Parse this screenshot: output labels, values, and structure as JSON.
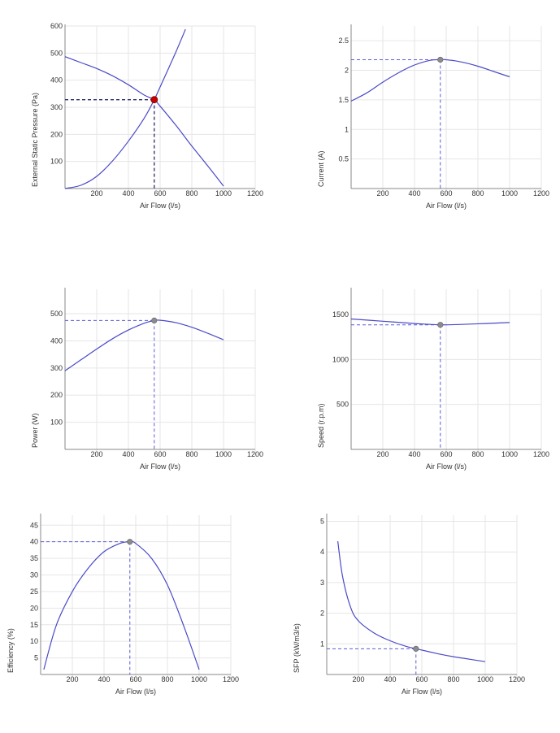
{
  "colors": {
    "curve": "#4a4ac8",
    "guide": "#5b5bd6",
    "guide_dark": "#2a2a6a",
    "grid": "#e6e6e6",
    "axis": "#888888",
    "point": "#8c8c8c",
    "duty_point": "#cc0000"
  },
  "chart_data": [
    {
      "id": "pressure",
      "type": "line",
      "xlabel": "Air Flow (l/s)",
      "ylabel": "External Static Pressure (Pa)",
      "xlim": [
        0,
        1200
      ],
      "ylim": [
        0,
        600
      ],
      "xticks": [
        200,
        400,
        600,
        800,
        1000,
        1200
      ],
      "yticks": [
        100,
        200,
        300,
        400,
        500,
        600
      ],
      "xtick_labels": [
        "200",
        "400",
        "600",
        "800",
        "1000",
        "1200"
      ],
      "ytick_labels": [
        "100",
        "200",
        "300",
        "400",
        "500",
        "600"
      ],
      "series": [
        {
          "x": [
            0,
            100,
            200,
            300,
            400,
            500,
            563,
            600,
            700,
            800,
            900,
            1000
          ],
          "y": [
            487,
            465,
            443,
            416,
            383,
            345,
            328,
            304,
            233,
            157,
            84,
            9
          ]
        },
        {
          "x": [
            0,
            100,
            200,
            300,
            400,
            500,
            563,
            600,
            700,
            760
          ],
          "y": [
            0,
            12,
            45,
            102,
            175,
            260,
            328,
            375,
            505,
            588
          ]
        }
      ],
      "point": {
        "x": 563,
        "y": 328
      },
      "point_style": "duty"
    },
    {
      "id": "current",
      "type": "line",
      "xlabel": "Air Flow (l/s)",
      "ylabel": "Current (A)",
      "xlim": [
        0,
        1200
      ],
      "ylim": [
        0,
        2.75
      ],
      "xticks": [
        200,
        400,
        600,
        800,
        1000,
        1200
      ],
      "yticks": [
        0.5,
        1,
        1.5,
        2,
        2.5
      ],
      "xtick_labels": [
        "200",
        "400",
        "600",
        "800",
        "1000",
        "1200"
      ],
      "ytick_labels": [
        "0.5",
        "1",
        "1.5",
        "2",
        "2.5"
      ],
      "series": [
        {
          "x": [
            0,
            100,
            200,
            300,
            400,
            500,
            563,
            600,
            700,
            800,
            900,
            1000
          ],
          "y": [
            1.48,
            1.62,
            1.8,
            1.96,
            2.09,
            2.17,
            2.18,
            2.18,
            2.14,
            2.07,
            1.98,
            1.89
          ]
        }
      ],
      "point": {
        "x": 563,
        "y": 2.18
      },
      "point_style": "gray"
    },
    {
      "id": "power",
      "type": "line",
      "xlabel": "Air Flow (l/s)",
      "ylabel": "Power (W)",
      "xlim": [
        0,
        1200
      ],
      "ylim": [
        0,
        590
      ],
      "xticks": [
        200,
        400,
        600,
        800,
        1000,
        1200
      ],
      "yticks": [
        100,
        200,
        300,
        400,
        500
      ],
      "xtick_labels": [
        "200",
        "400",
        "600",
        "800",
        "1000",
        "1200"
      ],
      "ytick_labels": [
        "100",
        "200",
        "300",
        "400",
        "500"
      ],
      "series": [
        {
          "x": [
            0,
            100,
            200,
            300,
            400,
            500,
            563,
            600,
            700,
            800,
            900,
            1000
          ],
          "y": [
            290,
            330,
            370,
            408,
            440,
            465,
            475,
            476,
            467,
            450,
            428,
            404
          ]
        }
      ],
      "point": {
        "x": 563,
        "y": 475
      },
      "point_style": "gray"
    },
    {
      "id": "speed",
      "type": "line",
      "xlabel": "Air Flow (l/s)",
      "ylabel": "Speed (r.p.m)",
      "xlim": [
        0,
        1200
      ],
      "ylim": [
        0,
        1780
      ],
      "xticks": [
        200,
        400,
        600,
        800,
        1000,
        1200
      ],
      "yticks": [
        500,
        1000,
        1500
      ],
      "xtick_labels": [
        "200",
        "400",
        "600",
        "800",
        "1000",
        "1200"
      ],
      "ytick_labels": [
        "500",
        "1000",
        "1500"
      ],
      "series": [
        {
          "x": [
            0,
            200,
            400,
            563,
            700,
            850,
            1000
          ],
          "y": [
            1450,
            1425,
            1400,
            1385,
            1390,
            1400,
            1410
          ]
        }
      ],
      "point": {
        "x": 563,
        "y": 1385
      },
      "point_style": "gray"
    },
    {
      "id": "efficiency",
      "type": "line",
      "xlabel": "Air Flow (l/s)",
      "ylabel": "Efficiency (%)",
      "xlim": [
        0,
        1200
      ],
      "ylim": [
        0,
        48
      ],
      "xticks": [
        200,
        400,
        600,
        800,
        1000,
        1200
      ],
      "yticks": [
        5,
        10,
        15,
        20,
        25,
        30,
        35,
        40,
        45
      ],
      "xtick_labels": [
        "200",
        "400",
        "600",
        "800",
        "1000",
        "1200"
      ],
      "ytick_labels": [
        "5",
        "10",
        "15",
        "20",
        "25",
        "30",
        "35",
        "40",
        "45"
      ],
      "series": [
        {
          "x": [
            20,
            100,
            200,
            300,
            400,
            500,
            563,
            600,
            700,
            800,
            900,
            1000
          ],
          "y": [
            1.5,
            15,
            25,
            32,
            37,
            39.5,
            40,
            39.5,
            35,
            27,
            15,
            1.5
          ]
        }
      ],
      "point": {
        "x": 563,
        "y": 40
      },
      "point_style": "gray"
    },
    {
      "id": "sfp",
      "type": "line",
      "xlabel": "Air Flow (l/s)",
      "ylabel": "SFP (kW/m3/s)",
      "xlim": [
        0,
        1200
      ],
      "ylim": [
        0,
        5.2
      ],
      "xticks": [
        200,
        400,
        600,
        800,
        1000,
        1200
      ],
      "yticks": [
        1,
        2,
        3,
        4,
        5
      ],
      "xtick_labels": [
        "200",
        "400",
        "600",
        "800",
        "1000",
        "1200"
      ],
      "ytick_labels": [
        "1",
        "2",
        "3",
        "4",
        "5"
      ],
      "series": [
        {
          "x": [
            70,
            100,
            150,
            200,
            300,
            400,
            500,
            563,
            700,
            800,
            900,
            1000
          ],
          "y": [
            4.35,
            3.2,
            2.2,
            1.75,
            1.35,
            1.1,
            0.92,
            0.84,
            0.68,
            0.58,
            0.5,
            0.42
          ]
        }
      ],
      "point": {
        "x": 563,
        "y": 0.84
      },
      "point_style": "gray"
    }
  ]
}
